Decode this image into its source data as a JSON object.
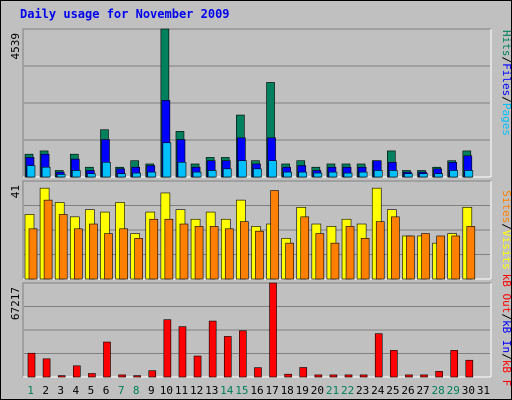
{
  "title": "Daily usage for November 2009",
  "colors": {
    "hits": "#00805c",
    "files": "#0000ff",
    "pages": "#00c0ff",
    "visits": "#ffff00",
    "sites": "#ff8000",
    "kbin": "#0000ff",
    "kbout": "#ff0000",
    "weekend_day": "#00805c",
    "weekday": "#000000",
    "background": "#c0c0c0"
  },
  "panel_labels": {
    "top": [
      "Pages",
      "/",
      "Files",
      "/",
      "Hits"
    ],
    "mid": [
      "Visits",
      "/",
      "Sites"
    ],
    "bot": [
      "kB F",
      "/",
      "kB In",
      "/",
      "kB Out"
    ]
  },
  "panel_max": {
    "top": "4539",
    "mid": "41",
    "bot": "67217"
  },
  "chart_data": [
    {
      "type": "bar",
      "title": "Daily usage for November 2009",
      "categories": [
        "1",
        "2",
        "3",
        "4",
        "5",
        "6",
        "7",
        "8",
        "9",
        "10",
        "11",
        "12",
        "13",
        "14",
        "15",
        "16",
        "17",
        "18",
        "19",
        "20",
        "21",
        "22",
        "23",
        "24",
        "25",
        "26",
        "27",
        "28",
        "29",
        "30",
        "31"
      ],
      "weekend_days": [
        "1",
        "7",
        "8",
        "14",
        "15",
        "21",
        "22",
        "28",
        "29"
      ],
      "ylim": [
        0,
        4539
      ],
      "series": [
        {
          "name": "Hits",
          "values": [
            700,
            800,
            200,
            700,
            300,
            1450,
            300,
            500,
            400,
            4539,
            1400,
            400,
            600,
            600,
            1900,
            500,
            2900,
            400,
            500,
            300,
            400,
            400,
            400,
            500,
            800,
            200,
            200,
            300,
            500,
            800,
            0
          ]
        },
        {
          "name": "Files",
          "values": [
            600,
            700,
            150,
            550,
            200,
            1150,
            250,
            300,
            350,
            2350,
            1150,
            300,
            500,
            500,
            1200,
            400,
            1200,
            300,
            350,
            200,
            300,
            300,
            300,
            500,
            450,
            150,
            150,
            250,
            450,
            650,
            0
          ]
        },
        {
          "name": "Pages",
          "values": [
            350,
            300,
            80,
            200,
            100,
            450,
            100,
            120,
            150,
            1050,
            450,
            150,
            200,
            250,
            500,
            250,
            500,
            150,
            150,
            120,
            150,
            120,
            150,
            200,
            200,
            100,
            100,
            100,
            200,
            200,
            0
          ]
        }
      ]
    },
    {
      "type": "bar",
      "categories": [
        "1",
        "2",
        "3",
        "4",
        "5",
        "6",
        "7",
        "8",
        "9",
        "10",
        "11",
        "12",
        "13",
        "14",
        "15",
        "16",
        "17",
        "18",
        "19",
        "20",
        "21",
        "22",
        "23",
        "24",
        "25",
        "26",
        "27",
        "28",
        "29",
        "30",
        "31"
      ],
      "ylim": [
        0,
        41
      ],
      "series": [
        {
          "name": "Visits",
          "values": [
            27,
            38,
            32,
            26,
            29,
            28,
            32,
            19,
            28,
            36,
            29,
            25,
            28,
            25,
            33,
            22,
            23,
            17,
            30,
            23,
            22,
            25,
            23,
            38,
            29,
            18,
            18,
            15,
            19,
            30,
            0
          ]
        },
        {
          "name": "Sites",
          "values": [
            21,
            33,
            27,
            21,
            23,
            19,
            21,
            17,
            25,
            25,
            23,
            22,
            22,
            21,
            24,
            20,
            37,
            15,
            26,
            19,
            15,
            22,
            17,
            24,
            26,
            18,
            19,
            18,
            18,
            22,
            0
          ]
        }
      ]
    },
    {
      "type": "bar",
      "categories": [
        "1",
        "2",
        "3",
        "4",
        "5",
        "6",
        "7",
        "8",
        "9",
        "10",
        "11",
        "12",
        "13",
        "14",
        "15",
        "16",
        "17",
        "18",
        "19",
        "20",
        "21",
        "22",
        "23",
        "24",
        "25",
        "26",
        "27",
        "28",
        "29",
        "30",
        "31"
      ],
      "ylim": [
        0,
        67217
      ],
      "series": [
        {
          "name": "kB Out",
          "values": [
            17000,
            13000,
            1000,
            8000,
            2500,
            25000,
            1500,
            1000,
            4500,
            41000,
            36000,
            15000,
            40000,
            29000,
            33000,
            6700,
            67217,
            2000,
            6800,
            1500,
            1500,
            1500,
            1500,
            31000,
            19000,
            1500,
            1500,
            4000,
            19000,
            12000,
            0
          ]
        }
      ]
    }
  ]
}
